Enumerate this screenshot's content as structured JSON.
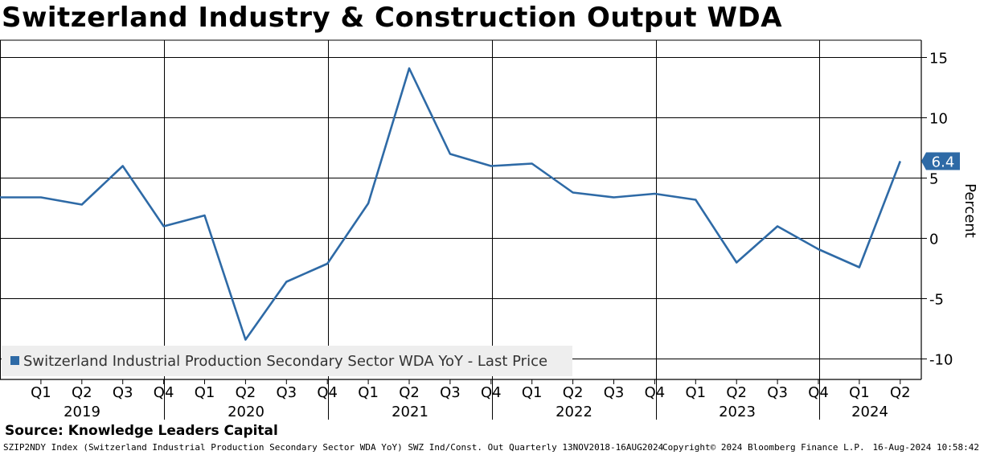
{
  "title": "Switzerland Industry & Construction Output WDA",
  "source": "Source: Knowledge Leaders Capital",
  "footer": {
    "left": "SZIP2NDY Index (Switzerland Industrial Production Secondary Sector WDA YoY) SWZ Ind/Const. Out  Quarterly 13NOV2018-16AUG2024",
    "copyright": "Copyright© 2024 Bloomberg Finance L.P.",
    "timestamp": "16-Aug-2024 10:58:42"
  },
  "colors": {
    "series": "#2e6aa6",
    "label_bg": "#2e6aa6",
    "legend_bg": "#eeeeee"
  },
  "chart_data": {
    "type": "line",
    "title": "Switzerland Industry & Construction Output WDA",
    "ylabel": "Percent",
    "ylim": [
      -11.5,
      16
    ],
    "yticks": [
      15,
      10,
      5,
      0,
      -5,
      -10
    ],
    "quarter_labels": [
      "Q1",
      "Q2",
      "Q3",
      "Q4",
      "Q1",
      "Q2",
      "Q3",
      "Q4",
      "Q1",
      "Q2",
      "Q3",
      "Q4",
      "Q1",
      "Q2",
      "Q3",
      "Q4",
      "Q1",
      "Q2",
      "Q3",
      "Q4",
      "Q1",
      "Q2"
    ],
    "year_labels": [
      "2019",
      "2020",
      "2021",
      "2022",
      "2023",
      "2024"
    ],
    "series": [
      {
        "name": "Switzerland Industrial Production Secondary Sector WDA YoY - Last Price",
        "x": [
          "2018Q4",
          "2019Q1",
          "2019Q2",
          "2019Q3",
          "2019Q4",
          "2020Q1",
          "2020Q2",
          "2020Q3",
          "2020Q4",
          "2021Q1",
          "2021Q2",
          "2021Q3",
          "2021Q4",
          "2022Q1",
          "2022Q2",
          "2022Q3",
          "2022Q4",
          "2023Q1",
          "2023Q2",
          "2023Q3",
          "2023Q4",
          "2024Q1",
          "2024Q2"
        ],
        "values": [
          3.4,
          3.4,
          2.8,
          6.0,
          1.0,
          1.9,
          -8.4,
          -3.6,
          -2.1,
          2.9,
          14.1,
          7.0,
          6.0,
          6.2,
          3.8,
          3.4,
          3.7,
          3.2,
          -2.0,
          1.0,
          -0.9,
          -2.4,
          6.4
        ]
      }
    ],
    "last_value_label": "6.4",
    "legend": "Switzerland Industrial Production Secondary Sector WDA YoY - Last Price",
    "legend_position": "bottom-left",
    "grid": true
  }
}
